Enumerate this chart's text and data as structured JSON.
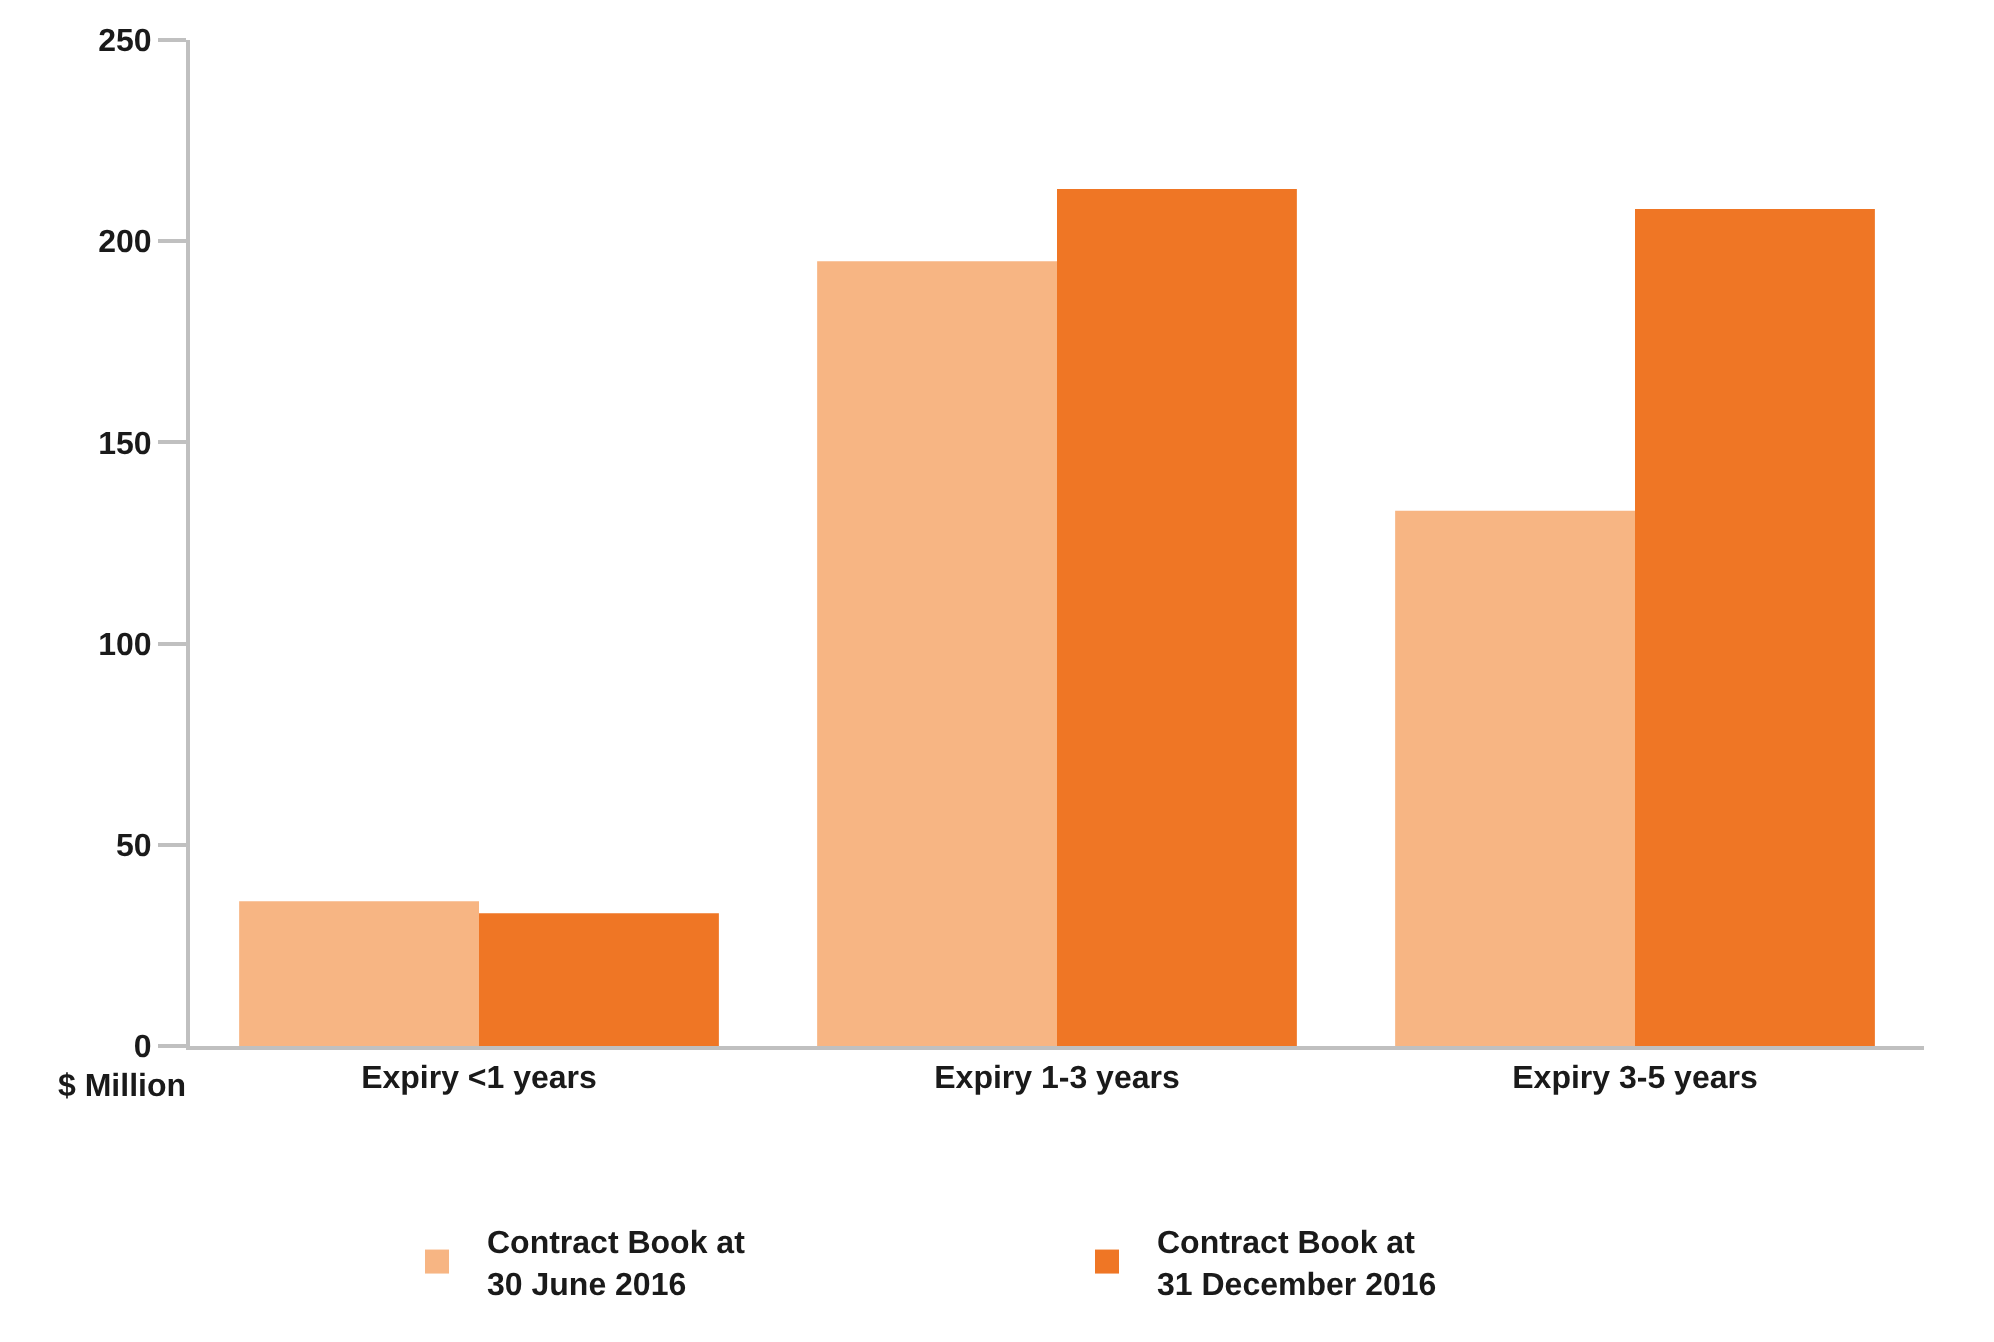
{
  "chart_data": {
    "type": "bar",
    "ylabel": "$ Million",
    "categories": [
      "Expiry <1 years",
      "Expiry 1-3 years",
      "Expiry 3-5 years"
    ],
    "series": [
      {
        "name": "Contract Book at\n30 June 2016",
        "color": "#f7b583",
        "values": [
          36,
          195,
          133
        ]
      },
      {
        "name": "Contract Book at\n31 December 2016",
        "color": "#ef7625",
        "values": [
          33,
          213,
          208
        ]
      }
    ],
    "ylim": [
      0,
      250
    ],
    "yticks": [
      0,
      50,
      100,
      150,
      200,
      250
    ],
    "grid": false,
    "legend": "bottom"
  }
}
